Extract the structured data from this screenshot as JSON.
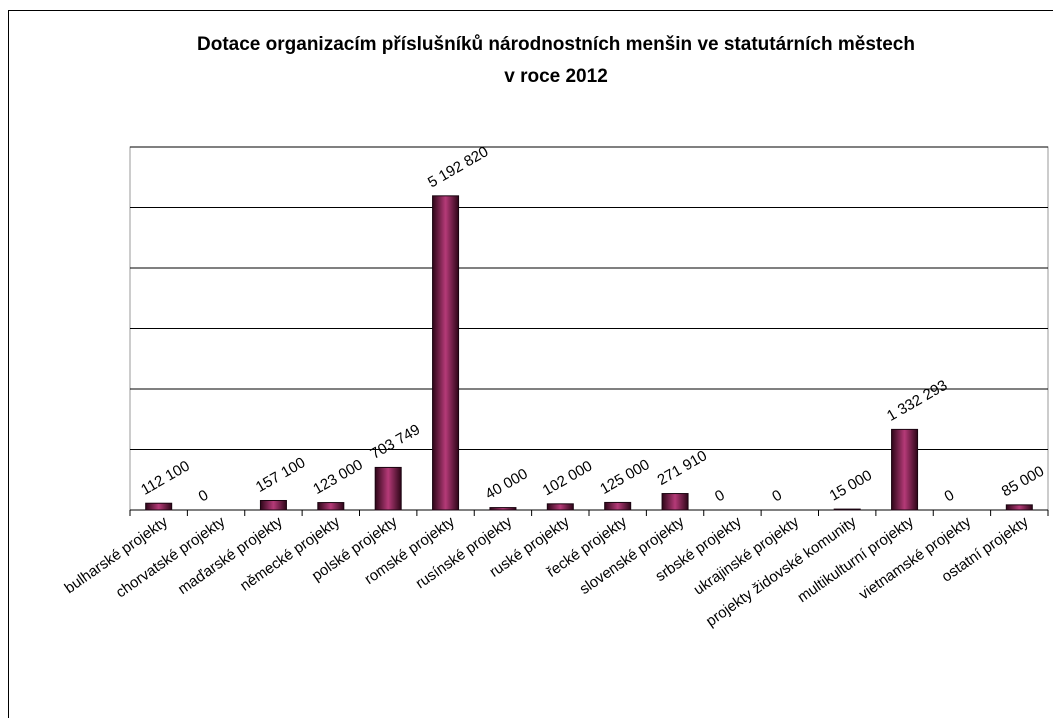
{
  "chart_data": {
    "type": "bar",
    "title": [
      "Dotace organizacím příslušníků národnostních menšin ve statutárních městech",
      "v roce 2012"
    ],
    "categories": [
      "bulharské projekty",
      "chorvatské projekty",
      "maďarské projekty",
      "německé projekty",
      "polské projekty",
      "romské projekty",
      "rusínské projekty",
      "ruské projekty",
      "řecké projekty",
      "slovenské projekty",
      "srbské projekty",
      "ukrajinské projekty",
      "projekty židovské komunity",
      "multikulturní projekty",
      "vietnamské projekty",
      "ostatní projekty"
    ],
    "values": [
      112100,
      0,
      157100,
      123000,
      703749,
      5192820,
      40000,
      102000,
      125000,
      271910,
      0,
      0,
      15000,
      1332293,
      0,
      85000
    ],
    "value_labels": [
      "112 100",
      "0",
      "157 100",
      "123 000",
      "703 749",
      "5 192 820",
      "40 000",
      "102 000",
      "125 000",
      "271 910",
      "0",
      "0",
      "15 000",
      "1 332 293",
      "0",
      "85 000"
    ],
    "color": "#8b2456",
    "ylim": [
      0,
      6000000
    ],
    "yticks": [
      0,
      1000000,
      2000000,
      3000000,
      4000000,
      5000000,
      6000000
    ],
    "grid": true
  }
}
